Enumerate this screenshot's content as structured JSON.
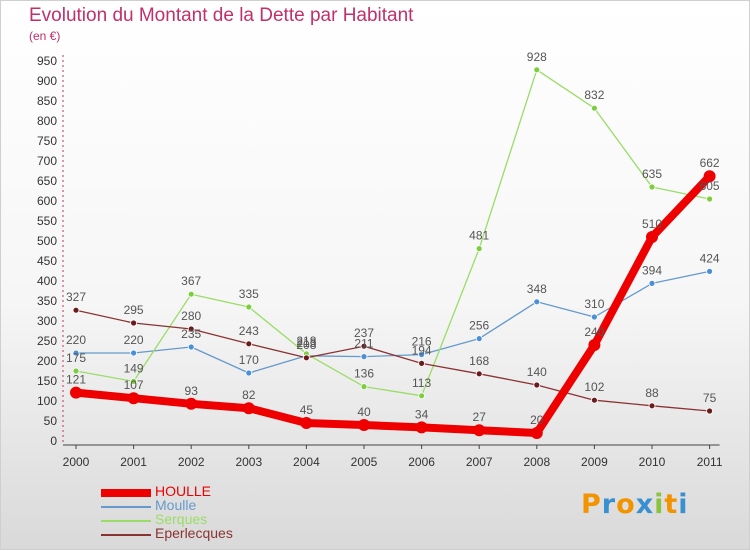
{
  "header": {
    "title": "Evolution du Montant de la Dette par Habitant",
    "subtitle": "(en €)"
  },
  "brand": {
    "letters": [
      "P",
      "r",
      "o",
      "x",
      "i",
      "t",
      "i"
    ],
    "colors": [
      "#f29400",
      "#3a8fd0",
      "#f29400",
      "#3a8fd0",
      "#8ac43f",
      "#f29400",
      "#3a8fd0"
    ]
  },
  "chart_data": {
    "type": "line",
    "title": "Evolution du Montant de la Dette par Habitant",
    "ylabel": "(en €)",
    "xlabel": "",
    "categories": [
      "2000",
      "2001",
      "2002",
      "2003",
      "2004",
      "2005",
      "2006",
      "2007",
      "2008",
      "2009",
      "2010",
      "2011"
    ],
    "ylim": [
      0,
      950
    ],
    "yticks": [
      0,
      50,
      100,
      150,
      200,
      250,
      300,
      350,
      400,
      450,
      500,
      550,
      600,
      650,
      700,
      750,
      800,
      850,
      900,
      950
    ],
    "grid": false,
    "legend_position": "bottom-left",
    "series": [
      {
        "name": "HOULLE",
        "color": "#ee0000",
        "point_color": "#ee0000",
        "label_color": "#555555",
        "weight": "heavy",
        "values": [
          121,
          107,
          93,
          82,
          45,
          40,
          34,
          27,
          20,
          240,
          510,
          662
        ]
      },
      {
        "name": "Moulle",
        "color": "#6699cc",
        "point_color": "#4a90d9",
        "label_color": "#555555",
        "weight": "normal",
        "values": [
          220,
          220,
          235,
          170,
          213,
          211,
          216,
          256,
          348,
          310,
          394,
          424
        ]
      },
      {
        "name": "Serques",
        "color": "#99dd66",
        "point_color": "#7ccf3c",
        "label_color": "#555555",
        "weight": "normal",
        "values": [
          175,
          149,
          367,
          335,
          218,
          136,
          113,
          481,
          928,
          832,
          635,
          605
        ]
      },
      {
        "name": "Eperlecques",
        "color": "#8a3333",
        "point_color": "#6a1b1b",
        "label_color": "#555555",
        "weight": "normal",
        "values": [
          327,
          295,
          280,
          243,
          208,
          237,
          194,
          168,
          140,
          102,
          88,
          75
        ]
      }
    ]
  }
}
